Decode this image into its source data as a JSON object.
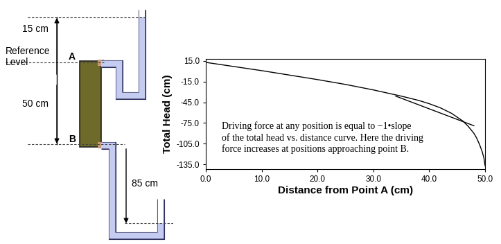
{
  "chart_data": {
    "type": "line",
    "x_label": "Distance from Point A (cm)",
    "y_label": "Total Head (cm)",
    "annotation": "Driving force at any position is equal to −1•slope\nof the total head vs. distance curve. Here the driving\nforce increases at positions approaching point B.",
    "series": [
      {
        "color": "#000000",
        "line_style": "solid",
        "x": [
          0,
          5,
          10,
          15,
          20,
          25,
          30,
          35,
          38,
          40,
          42,
          44,
          46,
          47,
          48,
          48.5,
          49,
          49.5,
          49.8,
          50
        ],
        "values": [
          13,
          7,
          1,
          -5.5,
          -12,
          -19,
          -27,
          -36,
          -42,
          -47,
          -53,
          -61,
          -72,
          -80,
          -90,
          -97,
          -106,
          -117,
          -126,
          -137
        ]
      },
      {
        "color": "#000000",
        "line_style": "solid",
        "x": [
          34,
          48
        ],
        "values": [
          -36,
          -79
        ]
      }
    ],
    "xlim": [
      0,
      50
    ],
    "ylim": [
      -142,
      18
    ],
    "xticks": [
      {
        "value": 0,
        "label": "0.0"
      },
      {
        "value": 10,
        "label": "10.0"
      },
      {
        "value": 20,
        "label": "20.0"
      },
      {
        "value": 30,
        "label": "30.0"
      },
      {
        "value": 40,
        "label": "40.0"
      },
      {
        "value": 50,
        "label": "50.0"
      }
    ],
    "yticks": [
      {
        "value": 15,
        "label": "15.0"
      },
      {
        "value": -15,
        "label": "-15.0"
      },
      {
        "value": -45,
        "label": "-45.0"
      },
      {
        "value": -75,
        "label": "-75.0"
      },
      {
        "value": -105,
        "label": "-105.0"
      },
      {
        "value": -135,
        "label": "-135.0"
      }
    ],
    "grid": false
  },
  "diagram": {
    "top_height": "15 cm",
    "reference": "Reference\nLevel",
    "column_length": "50 cm",
    "bottom_height": "85 cm",
    "point_a": "A",
    "point_b": "B"
  }
}
